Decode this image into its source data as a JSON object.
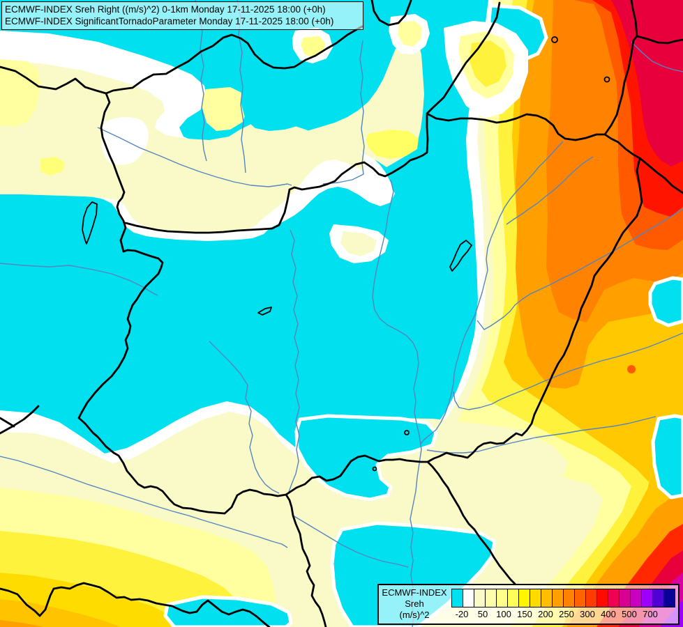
{
  "title_box": {
    "line1": "ECMWF-INDEX Sreh Right ((m/s)^2) 0-1km Monday 17-11-2025 18:00 (+0h)",
    "line2": "ECMWF-INDEX SignificantTornadoParameter Monday 17-11-2025 18:00 (+0h)"
  },
  "legend": {
    "product": "ECMWF-INDEX",
    "parameter": "Sreh",
    "units": "(m/s)^2",
    "ticks": [
      "-20",
      "50",
      "100",
      "150",
      "200",
      "250",
      "300",
      "400",
      "500",
      "700"
    ],
    "palette": [
      "#00E0EE",
      "#FFFFFF",
      "#FAFAC8",
      "#FCFCAA",
      "#FFFF8C",
      "#FFFF5A",
      "#FFF500",
      "#FFDC00",
      "#FFBE00",
      "#FFA000",
      "#FF8200",
      "#FF6400",
      "#FF3C00",
      "#FF0A00",
      "#F00050",
      "#D80090",
      "#C800C0",
      "#9C00F8",
      "#5000D2",
      "#0A0096"
    ],
    "tick_cell_step": 2
  },
  "map_colors": {
    "cyan": "#00E0EE",
    "white": "#FFFFFF",
    "cream": "#FAFAC8",
    "pale_yellow": "#FFFFA0",
    "yellow": "#FFF23C",
    "gold": "#FFC800",
    "orange": "#FFA000",
    "red": "#FF1400",
    "crimson": "#E8003C",
    "magenta": "#D800A0",
    "river_blue": "#5585BF",
    "border_black": "#000000"
  }
}
